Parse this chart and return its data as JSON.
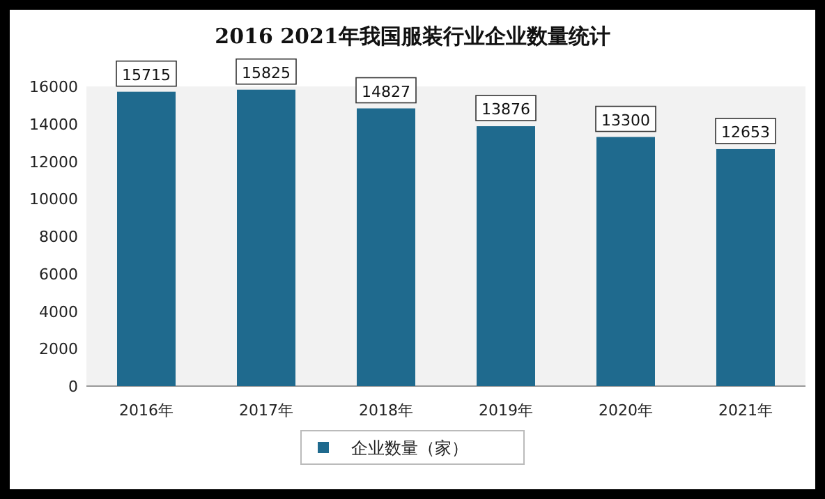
{
  "chart_data": {
    "type": "bar",
    "title": "2016 2021年我国服装行业企业数量统计",
    "categories": [
      "2016年",
      "2017年",
      "2018年",
      "2019年",
      "2020年",
      "2021年"
    ],
    "series": [
      {
        "name": "企业数量（家）",
        "color": "#1f6a8e",
        "values": [
          15715,
          15825,
          14827,
          13876,
          13300,
          12653
        ]
      }
    ],
    "ylim": [
      0,
      16000
    ],
    "yticks": [
      0,
      2000,
      4000,
      6000,
      8000,
      10000,
      12000,
      14000,
      16000
    ],
    "data_labels": true,
    "legend": "bottom"
  }
}
